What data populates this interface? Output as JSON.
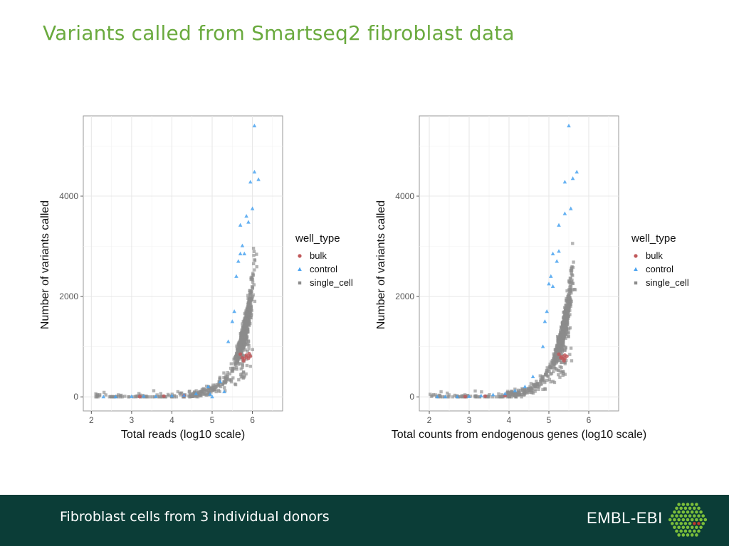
{
  "slide": {
    "title": "Variants called from Smartseq2 fibroblast data",
    "title_color": "#6aaa3e"
  },
  "footer": {
    "caption": "Fibroblast cells from 3 individual donors",
    "brand": "EMBL-EBI",
    "background": "#0b3d37",
    "logo_color": "#7cbf3a",
    "logo_accent": "#c0392b"
  },
  "chart_data": [
    {
      "type": "scatter",
      "xlabel": "Total reads (log10 scale)",
      "ylabel": "Number of variants called",
      "xlim": [
        1.8,
        6.75
      ],
      "ylim": [
        -280,
        5600
      ],
      "xticks": [
        2,
        3,
        4,
        5,
        6
      ],
      "yticks": [
        0,
        2000,
        4000
      ],
      "legend_title": "well_type",
      "legend_position": "right",
      "series": [
        {
          "name": "bulk",
          "color": "#c0585a",
          "marker": "circle",
          "points": [
            [
              5.75,
              780
            ],
            [
              5.85,
              830
            ],
            [
              5.8,
              760
            ],
            [
              5.95,
              810
            ],
            [
              5.7,
              850
            ],
            [
              5.9,
              770
            ],
            [
              5.85,
              800
            ],
            [
              5.78,
              720
            ],
            [
              5.92,
              860
            ],
            [
              3.2,
              5
            ],
            [
              3.8,
              15
            ],
            [
              4.3,
              25
            ]
          ]
        },
        {
          "name": "control",
          "color": "#4aa3f0",
          "marker": "triangle",
          "points": [
            [
              6.05,
              5400
            ],
            [
              6.05,
              4480
            ],
            [
              6.15,
              4330
            ],
            [
              5.95,
              4280
            ],
            [
              6.0,
              3750
            ],
            [
              5.85,
              3600
            ],
            [
              5.9,
              3480
            ],
            [
              5.7,
              3420
            ],
            [
              5.75,
              3010
            ],
            [
              5.8,
              2850
            ],
            [
              5.7,
              2850
            ],
            [
              5.65,
              2700
            ],
            [
              5.6,
              2400
            ],
            [
              5.55,
              1700
            ],
            [
              5.5,
              1500
            ],
            [
              5.4,
              1100
            ],
            [
              5.2,
              300
            ],
            [
              5.3,
              100
            ],
            [
              4.9,
              200
            ],
            [
              4.95,
              50
            ],
            [
              4.6,
              60
            ],
            [
              4.3,
              30
            ],
            [
              4.0,
              20
            ],
            [
              3.6,
              5
            ],
            [
              3.3,
              10
            ],
            [
              3.0,
              5
            ],
            [
              2.6,
              0
            ],
            [
              2.3,
              0
            ],
            [
              5.0,
              0
            ]
          ]
        },
        {
          "name": "single_cell",
          "color": "#8c8c8c",
          "marker": "square",
          "generate": true,
          "n": 900
        }
      ]
    },
    {
      "type": "scatter",
      "xlabel": "Total counts from endogenous genes (log10 scale)",
      "ylabel": "Number of variants called",
      "xlim": [
        1.75,
        6.75
      ],
      "ylim": [
        -280,
        5600
      ],
      "xticks": [
        2,
        3,
        4,
        5,
        6
      ],
      "yticks": [
        0,
        2000,
        4000
      ],
      "legend_title": "well_type",
      "legend_position": "right",
      "series": [
        {
          "name": "bulk",
          "color": "#c0585a",
          "marker": "circle",
          "points": [
            [
              5.3,
              780
            ],
            [
              5.4,
              830
            ],
            [
              5.35,
              760
            ],
            [
              5.45,
              810
            ],
            [
              5.25,
              850
            ],
            [
              5.4,
              770
            ],
            [
              5.32,
              800
            ],
            [
              5.38,
              720
            ],
            [
              2.9,
              5
            ],
            [
              3.4,
              15
            ],
            [
              3.9,
              25
            ]
          ]
        },
        {
          "name": "control",
          "color": "#4aa3f0",
          "marker": "triangle",
          "points": [
            [
              5.5,
              5400
            ],
            [
              5.7,
              4480
            ],
            [
              5.6,
              4350
            ],
            [
              5.4,
              4280
            ],
            [
              5.55,
              3750
            ],
            [
              5.4,
              3650
            ],
            [
              5.25,
              3420
            ],
            [
              5.25,
              2900
            ],
            [
              5.1,
              2850
            ],
            [
              5.2,
              2700
            ],
            [
              5.05,
              2400
            ],
            [
              5.0,
              2250
            ],
            [
              5.1,
              2200
            ],
            [
              4.95,
              1700
            ],
            [
              4.9,
              1500
            ],
            [
              4.85,
              1000
            ],
            [
              4.6,
              400
            ],
            [
              4.4,
              200
            ],
            [
              4.15,
              120
            ],
            [
              3.9,
              60
            ],
            [
              3.6,
              40
            ],
            [
              3.3,
              20
            ],
            [
              3.0,
              5
            ],
            [
              2.7,
              0
            ],
            [
              2.4,
              0
            ],
            [
              2.2,
              0
            ]
          ]
        },
        {
          "name": "single_cell",
          "color": "#8c8c8c",
          "marker": "square",
          "generate": true,
          "n": 900
        }
      ]
    }
  ]
}
